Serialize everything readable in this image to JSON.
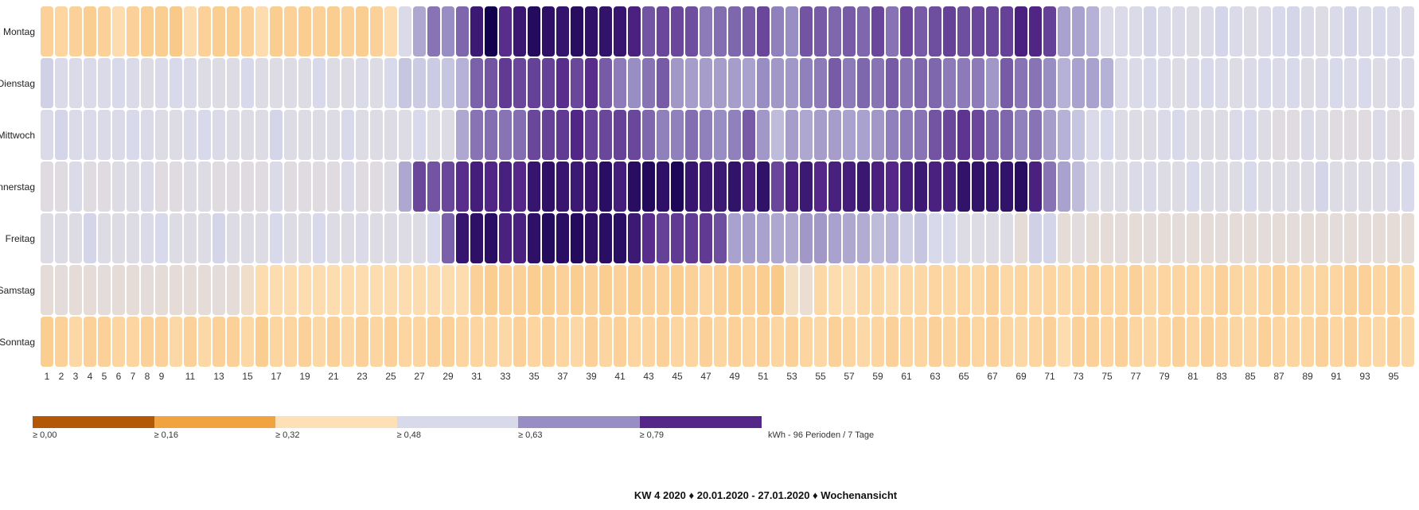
{
  "chart_data": {
    "type": "heatmap",
    "title": "KW 4 2020 ♦ 20.01.2020 - 27.01.2020 ♦ Wochenansicht",
    "unit_label": "kWh - 96 Perioden / 7 Tage",
    "rows": [
      "Montag",
      "Dienstag",
      "Mittwoch",
      "Donnerstag",
      "Freitag",
      "Samstag",
      "Sonntag"
    ],
    "columns": [
      1,
      2,
      3,
      4,
      5,
      6,
      7,
      8,
      9,
      10,
      11,
      12,
      13,
      14,
      15,
      16,
      17,
      18,
      19,
      20,
      21,
      22,
      23,
      24,
      25,
      26,
      27,
      28,
      29,
      30,
      31,
      32,
      33,
      34,
      35,
      36,
      37,
      38,
      39,
      40,
      41,
      42,
      43,
      44,
      45,
      46,
      47,
      48,
      49,
      50,
      51,
      52,
      53,
      54,
      55,
      56,
      57,
      58,
      59,
      60,
      61,
      62,
      63,
      64,
      65,
      66,
      67,
      68,
      69,
      70,
      71,
      72,
      73,
      74,
      75,
      76,
      77,
      78,
      79,
      80,
      81,
      82,
      83,
      84,
      85,
      86,
      87,
      88,
      89,
      90,
      91,
      92,
      93,
      94,
      95,
      96
    ],
    "x_tick_labels": [
      "1",
      "2",
      "3",
      "4",
      "5",
      "6",
      "7",
      "8",
      "9",
      "11",
      "13",
      "15",
      "17",
      "19",
      "21",
      "23",
      "25",
      "27",
      "29",
      "31",
      "33",
      "35",
      "37",
      "39",
      "41",
      "43",
      "45",
      "47",
      "49",
      "51",
      "53",
      "55",
      "57",
      "59",
      "61",
      "63",
      "65",
      "67",
      "69",
      "71",
      "73",
      "75",
      "77",
      "79",
      "81",
      "83",
      "85",
      "87",
      "89",
      "91",
      "93",
      "95"
    ],
    "legend": {
      "placement": "bottom-left",
      "thresholds": [
        {
          "label": "≥ 0,00",
          "value": 0.0,
          "color": "#b35806"
        },
        {
          "label": "≥ 0,16",
          "value": 0.16,
          "color": "#f1a340"
        },
        {
          "label": "≥ 0,32",
          "value": 0.32,
          "color": "#fee0b6"
        },
        {
          "label": "≥ 0,48",
          "value": 0.48,
          "color": "#d8daeb"
        },
        {
          "label": "≥ 0,63",
          "value": 0.63,
          "color": "#998ec3"
        },
        {
          "label": "≥ 0,79",
          "value": 0.79,
          "color": "#542788"
        }
      ]
    },
    "color_scale_max": {
      "value": 1.12,
      "color": "#12004e"
    },
    "values": [
      [
        0.28,
        0.29,
        0.28,
        0.27,
        0.28,
        0.31,
        0.28,
        0.27,
        0.27,
        0.26,
        0.31,
        0.28,
        0.27,
        0.27,
        0.28,
        0.31,
        0.27,
        0.28,
        0.27,
        0.28,
        0.27,
        0.28,
        0.27,
        0.28,
        0.31,
        0.47,
        0.58,
        0.67,
        0.63,
        0.69,
        0.91,
        1.12,
        0.78,
        0.92,
        1.03,
        0.98,
        0.95,
        1.01,
        0.97,
        0.96,
        0.93,
        0.84,
        0.72,
        0.74,
        0.74,
        0.73,
        0.66,
        0.68,
        0.69,
        0.71,
        0.74,
        0.65,
        0.63,
        0.72,
        0.71,
        0.69,
        0.71,
        0.69,
        0.74,
        0.67,
        0.74,
        0.71,
        0.73,
        0.75,
        0.73,
        0.74,
        0.74,
        0.75,
        0.84,
        0.81,
        0.75,
        0.59,
        0.59,
        0.56,
        0.47,
        0.47,
        0.47,
        0.49,
        0.47,
        0.47,
        0.46,
        0.47,
        0.49,
        0.47,
        0.46,
        0.47,
        0.48,
        0.49,
        0.47,
        0.46,
        0.47,
        0.49,
        0.47,
        0.48,
        0.47,
        0.47
      ],
      [
        0.5,
        0.47,
        0.47,
        0.47,
        0.47,
        0.48,
        0.47,
        0.46,
        0.47,
        0.48,
        0.47,
        0.46,
        0.46,
        0.46,
        0.48,
        0.46,
        0.46,
        0.46,
        0.46,
        0.48,
        0.46,
        0.46,
        0.47,
        0.46,
        0.48,
        0.52,
        0.51,
        0.51,
        0.52,
        0.56,
        0.7,
        0.72,
        0.76,
        0.74,
        0.75,
        0.75,
        0.78,
        0.74,
        0.78,
        0.71,
        0.66,
        0.63,
        0.67,
        0.71,
        0.61,
        0.6,
        0.6,
        0.6,
        0.6,
        0.59,
        0.63,
        0.61,
        0.61,
        0.65,
        0.66,
        0.71,
        0.66,
        0.69,
        0.67,
        0.71,
        0.67,
        0.69,
        0.69,
        0.66,
        0.66,
        0.66,
        0.61,
        0.71,
        0.67,
        0.67,
        0.63,
        0.56,
        0.59,
        0.59,
        0.56,
        0.47,
        0.47,
        0.48,
        0.47,
        0.46,
        0.47,
        0.48,
        0.47,
        0.46,
        0.47,
        0.48,
        0.47,
        0.48,
        0.46,
        0.47,
        0.48,
        0.47,
        0.48,
        0.46,
        0.47,
        0.47
      ],
      [
        0.47,
        0.49,
        0.47,
        0.47,
        0.47,
        0.47,
        0.48,
        0.47,
        0.46,
        0.46,
        0.47,
        0.48,
        0.47,
        0.46,
        0.46,
        0.46,
        0.49,
        0.46,
        0.46,
        0.46,
        0.46,
        0.48,
        0.46,
        0.46,
        0.46,
        0.46,
        0.48,
        0.46,
        0.46,
        0.58,
        0.67,
        0.68,
        0.67,
        0.68,
        0.74,
        0.75,
        0.76,
        0.8,
        0.75,
        0.74,
        0.75,
        0.74,
        0.69,
        0.65,
        0.65,
        0.68,
        0.65,
        0.63,
        0.65,
        0.71,
        0.61,
        0.54,
        0.6,
        0.58,
        0.6,
        0.6,
        0.59,
        0.59,
        0.61,
        0.65,
        0.66,
        0.67,
        0.72,
        0.74,
        0.77,
        0.74,
        0.69,
        0.69,
        0.65,
        0.67,
        0.6,
        0.56,
        0.52,
        0.47,
        0.48,
        0.46,
        0.46,
        0.46,
        0.47,
        0.48,
        0.46,
        0.46,
        0.46,
        0.47,
        0.48,
        0.46,
        0.45,
        0.45,
        0.47,
        0.46,
        0.45,
        0.45,
        0.45,
        0.47,
        0.45,
        0.45
      ],
      [
        0.45,
        0.45,
        0.47,
        0.45,
        0.45,
        0.46,
        0.46,
        0.47,
        0.45,
        0.45,
        0.46,
        0.46,
        0.45,
        0.45,
        0.45,
        0.45,
        0.47,
        0.45,
        0.45,
        0.45,
        0.45,
        0.47,
        0.45,
        0.45,
        0.46,
        0.58,
        0.74,
        0.72,
        0.74,
        0.78,
        0.87,
        0.8,
        0.85,
        0.79,
        0.94,
        0.98,
        0.93,
        0.91,
        0.92,
        1.0,
        0.87,
        1.01,
        1.04,
        0.98,
        1.06,
        0.93,
        0.91,
        0.91,
        0.96,
        0.84,
        0.97,
        0.74,
        0.84,
        0.91,
        0.79,
        0.85,
        0.87,
        0.92,
        0.84,
        0.79,
        0.85,
        0.91,
        0.84,
        0.85,
        0.96,
        0.96,
        0.94,
        0.96,
        1.01,
        0.84,
        0.67,
        0.59,
        0.54,
        0.47,
        0.46,
        0.46,
        0.47,
        0.47,
        0.46,
        0.46,
        0.48,
        0.46,
        0.46,
        0.46,
        0.48,
        0.46,
        0.46,
        0.46,
        0.46,
        0.49,
        0.46,
        0.46,
        0.46,
        0.46,
        0.47,
        0.48
      ],
      [
        0.46,
        0.46,
        0.46,
        0.49,
        0.46,
        0.46,
        0.46,
        0.47,
        0.48,
        0.46,
        0.46,
        0.46,
        0.49,
        0.46,
        0.46,
        0.46,
        0.48,
        0.46,
        0.46,
        0.48,
        0.46,
        0.46,
        0.47,
        0.46,
        0.46,
        0.46,
        0.46,
        0.48,
        0.7,
        0.94,
        0.98,
        1.0,
        0.84,
        0.84,
        0.98,
        1.03,
        1.0,
        1.03,
        0.98,
        1.0,
        1.0,
        0.91,
        0.78,
        0.75,
        0.76,
        0.76,
        0.76,
        0.73,
        0.59,
        0.6,
        0.59,
        0.58,
        0.58,
        0.61,
        0.61,
        0.59,
        0.58,
        0.57,
        0.54,
        0.55,
        0.5,
        0.52,
        0.48,
        0.48,
        0.46,
        0.46,
        0.46,
        0.46,
        0.42,
        0.5,
        0.49,
        0.42,
        0.44,
        0.42,
        0.42,
        0.43,
        0.42,
        0.43,
        0.42,
        0.43,
        0.42,
        0.42,
        0.43,
        0.42,
        0.42,
        0.43,
        0.42,
        0.43,
        0.42,
        0.42,
        0.43,
        0.42,
        0.43,
        0.42,
        0.42,
        0.42
      ],
      [
        0.42,
        0.43,
        0.42,
        0.42,
        0.43,
        0.42,
        0.42,
        0.43,
        0.42,
        0.42,
        0.42,
        0.42,
        0.43,
        0.42,
        0.38,
        0.31,
        0.31,
        0.31,
        0.31,
        0.31,
        0.31,
        0.31,
        0.31,
        0.31,
        0.31,
        0.31,
        0.31,
        0.31,
        0.31,
        0.31,
        0.28,
        0.27,
        0.28,
        0.28,
        0.27,
        0.27,
        0.28,
        0.27,
        0.28,
        0.27,
        0.28,
        0.27,
        0.28,
        0.28,
        0.27,
        0.28,
        0.29,
        0.28,
        0.27,
        0.28,
        0.27,
        0.26,
        0.36,
        0.4,
        0.3,
        0.31,
        0.33,
        0.3,
        0.3,
        0.31,
        0.3,
        0.3,
        0.29,
        0.3,
        0.29,
        0.3,
        0.28,
        0.3,
        0.29,
        0.3,
        0.29,
        0.3,
        0.29,
        0.28,
        0.29,
        0.29,
        0.28,
        0.3,
        0.29,
        0.29,
        0.29,
        0.3,
        0.28,
        0.29,
        0.3,
        0.29,
        0.28,
        0.29,
        0.3,
        0.29,
        0.29,
        0.28,
        0.28,
        0.29,
        0.28,
        0.3
      ],
      [
        0.27,
        0.28,
        0.3,
        0.28,
        0.28,
        0.29,
        0.29,
        0.28,
        0.28,
        0.3,
        0.28,
        0.3,
        0.28,
        0.28,
        0.3,
        0.27,
        0.29,
        0.29,
        0.28,
        0.3,
        0.28,
        0.3,
        0.28,
        0.29,
        0.28,
        0.29,
        0.29,
        0.28,
        0.28,
        0.29,
        0.29,
        0.29,
        0.3,
        0.28,
        0.29,
        0.28,
        0.29,
        0.3,
        0.28,
        0.29,
        0.28,
        0.29,
        0.29,
        0.28,
        0.29,
        0.29,
        0.28,
        0.29,
        0.28,
        0.29,
        0.28,
        0.29,
        0.28,
        0.29,
        0.3,
        0.28,
        0.29,
        0.3,
        0.29,
        0.28,
        0.29,
        0.29,
        0.28,
        0.29,
        0.28,
        0.29,
        0.28,
        0.29,
        0.3,
        0.29,
        0.28,
        0.31,
        0.28,
        0.28,
        0.29,
        0.28,
        0.29,
        0.3,
        0.29,
        0.28,
        0.29,
        0.28,
        0.29,
        0.29,
        0.3,
        0.28,
        0.29,
        0.29,
        0.29,
        0.28,
        0.29,
        0.28,
        0.29,
        0.3,
        0.28,
        0.3
      ]
    ]
  }
}
